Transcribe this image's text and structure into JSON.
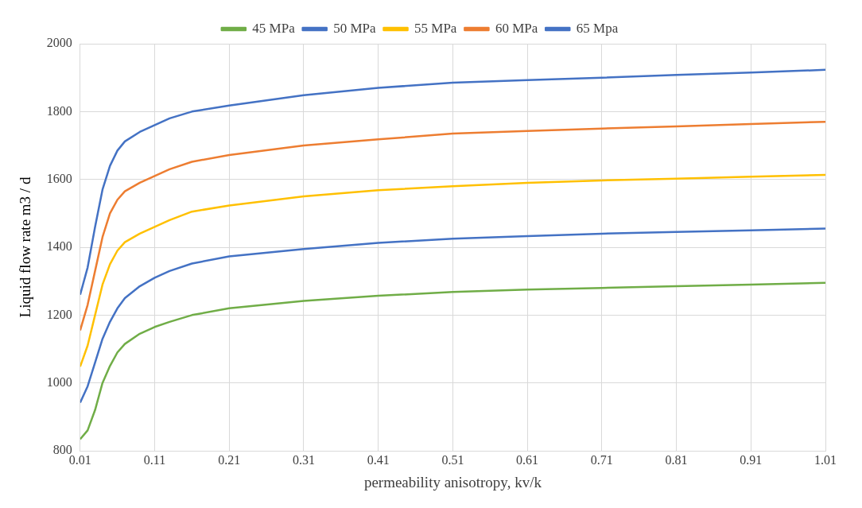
{
  "chart_data": {
    "type": "line",
    "xlabel": "permeability anisotropy, kv/k",
    "ylabel": "Liquid flow rate m3 / d",
    "x": [
      0.01,
      0.02,
      0.03,
      0.04,
      0.05,
      0.06,
      0.07,
      0.09,
      0.11,
      0.13,
      0.16,
      0.21,
      0.31,
      0.41,
      0.51,
      0.61,
      0.71,
      0.81,
      0.91,
      1.01
    ],
    "series": [
      {
        "name": "45 MPa",
        "color": "#70ad47",
        "values": [
          834,
          860,
          920,
          1000,
          1050,
          1090,
          1115,
          1145,
          1165,
          1180,
          1200,
          1220,
          1242,
          1257,
          1268,
          1275,
          1280,
          1285,
          1290,
          1295
        ]
      },
      {
        "name": "50 MPa",
        "color": "#4472c4",
        "values": [
          942,
          990,
          1060,
          1130,
          1180,
          1220,
          1250,
          1285,
          1310,
          1330,
          1352,
          1373,
          1395,
          1413,
          1425,
          1433,
          1440,
          1445,
          1450,
          1455
        ]
      },
      {
        "name": "55 MPa",
        "color": "#ffc000",
        "values": [
          1048,
          1110,
          1200,
          1290,
          1350,
          1390,
          1415,
          1440,
          1460,
          1480,
          1505,
          1523,
          1550,
          1568,
          1580,
          1590,
          1597,
          1602,
          1608,
          1613
        ]
      },
      {
        "name": "60 MPa",
        "color": "#ed7d31",
        "values": [
          1155,
          1230,
          1330,
          1430,
          1500,
          1540,
          1565,
          1590,
          1610,
          1630,
          1652,
          1672,
          1700,
          1718,
          1735,
          1743,
          1750,
          1756,
          1763,
          1770
        ]
      },
      {
        "name": "65 Mpa",
        "color": "#4472c4",
        "values": [
          1260,
          1340,
          1460,
          1570,
          1640,
          1685,
          1712,
          1740,
          1760,
          1780,
          1800,
          1818,
          1848,
          1870,
          1885,
          1893,
          1900,
          1908,
          1915,
          1923
        ]
      }
    ],
    "xlim": [
      0.01,
      1.01
    ],
    "xticks": [
      0.01,
      0.11,
      0.21,
      0.31,
      0.41,
      0.51,
      0.61,
      0.71,
      0.81,
      0.91,
      1.01
    ],
    "ylim": [
      800,
      2000
    ],
    "yticks": [
      800,
      1000,
      1200,
      1400,
      1600,
      1800,
      2000
    ],
    "grid": true,
    "legend": "top",
    "marker": "none",
    "line_style": "solid"
  }
}
